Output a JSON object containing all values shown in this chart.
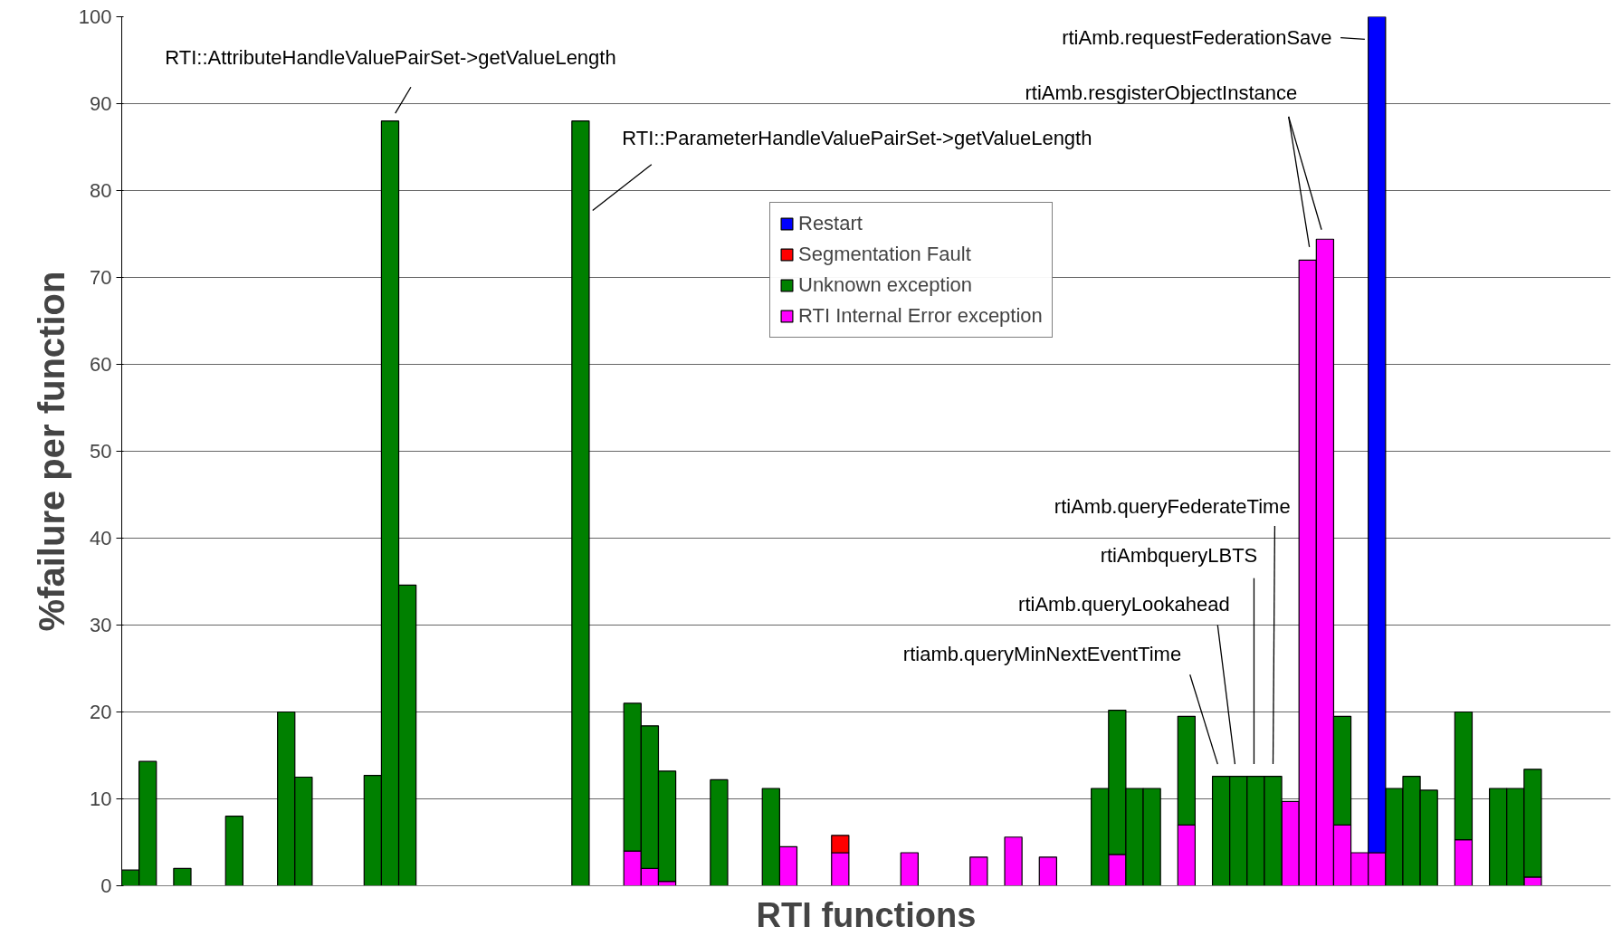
{
  "chart_data": {
    "type": "bar",
    "stacked": true,
    "xlabel": "RTI functions",
    "ylabel": "%failure per function",
    "categories": [
      null,
      null,
      null,
      null,
      null,
      null,
      null,
      null,
      null,
      null,
      null,
      null,
      null,
      null,
      null,
      null,
      null,
      null,
      null,
      null,
      null,
      null,
      null,
      null,
      null,
      null,
      null,
      null,
      null,
      null,
      null,
      null,
      null,
      null,
      null,
      null,
      null,
      null,
      null,
      null,
      null,
      null,
      null,
      null,
      null,
      null,
      null,
      null,
      null,
      null,
      null,
      null,
      null,
      null,
      null,
      null,
      null,
      null,
      null,
      null,
      null,
      null,
      null,
      null,
      null,
      null,
      null,
      null,
      null,
      null,
      null,
      null,
      null,
      null,
      null,
      null,
      null,
      null,
      null,
      null,
      null,
      null,
      null,
      null,
      null,
      null
    ],
    "series": [
      {
        "name": "RTI Internal Error exception",
        "color": "#ff00ff",
        "values": [
          null,
          null,
          null,
          null,
          null,
          null,
          null,
          null,
          null,
          null,
          null,
          null,
          null,
          null,
          null,
          null,
          null,
          null,
          null,
          null,
          null,
          null,
          null,
          null,
          null,
          null,
          null,
          null,
          null,
          4,
          2,
          0.5,
          null,
          null,
          null,
          null,
          null,
          null,
          4.5,
          null,
          null,
          3.8,
          null,
          null,
          null,
          3.8,
          null,
          null,
          null,
          3.3,
          null,
          5.6,
          null,
          3.3,
          null,
          null,
          null,
          3.6,
          null,
          null,
          null,
          7,
          null,
          null,
          null,
          null,
          null,
          9.7,
          72,
          74.4,
          7,
          3.8,
          3.8,
          null,
          null,
          null,
          null,
          5.3,
          null,
          null,
          null,
          1,
          null,
          null,
          null,
          null
        ]
      },
      {
        "name": "Unknown exception",
        "color": "#008000",
        "values": [
          1.8,
          14.3,
          null,
          2,
          null,
          null,
          8,
          null,
          null,
          20,
          12.5,
          null,
          null,
          null,
          12.7,
          88,
          34.6,
          null,
          null,
          null,
          null,
          null,
          null,
          null,
          null,
          null,
          88,
          null,
          null,
          17,
          16.4,
          12.7,
          null,
          null,
          12.2,
          null,
          null,
          11.2,
          null,
          null,
          null,
          null,
          null,
          null,
          null,
          null,
          null,
          null,
          null,
          null,
          null,
          null,
          null,
          null,
          null,
          null,
          11.2,
          16.6,
          11.2,
          11.2,
          null,
          12.5,
          null,
          12.6,
          12.6,
          12.6,
          12.6,
          null,
          null,
          null,
          12.5,
          null,
          null,
          11.2,
          12.6,
          11,
          null,
          14.7,
          null,
          11.2,
          11.2,
          12.4,
          null,
          null,
          null,
          null
        ]
      },
      {
        "name": "Segmentation Fault",
        "color": "#ff0000",
        "values": [
          null,
          null,
          null,
          null,
          null,
          null,
          null,
          null,
          null,
          null,
          null,
          null,
          null,
          null,
          null,
          null,
          null,
          null,
          null,
          null,
          null,
          null,
          null,
          null,
          null,
          null,
          null,
          null,
          null,
          null,
          null,
          null,
          null,
          null,
          null,
          null,
          null,
          null,
          null,
          null,
          null,
          2,
          null,
          null,
          null,
          null,
          null,
          null,
          null,
          null,
          null,
          null,
          null,
          null,
          null,
          null,
          null,
          null,
          null,
          null,
          null,
          null,
          null,
          null,
          null,
          null,
          null,
          null,
          null,
          null,
          null,
          null,
          null,
          null,
          null,
          null,
          null,
          null,
          null,
          null,
          null,
          null,
          null,
          null,
          null,
          null
        ]
      },
      {
        "name": "Restart",
        "color": "#0000ff",
        "values": [
          null,
          null,
          null,
          null,
          null,
          null,
          null,
          null,
          null,
          null,
          null,
          null,
          null,
          null,
          null,
          null,
          null,
          null,
          null,
          null,
          null,
          null,
          null,
          null,
          null,
          null,
          null,
          null,
          null,
          null,
          null,
          null,
          null,
          null,
          null,
          null,
          null,
          null,
          null,
          null,
          null,
          null,
          null,
          null,
          null,
          null,
          null,
          null,
          null,
          null,
          null,
          null,
          null,
          null,
          null,
          null,
          null,
          null,
          null,
          null,
          null,
          null,
          null,
          null,
          null,
          null,
          null,
          null,
          null,
          null,
          null,
          null,
          96.2,
          null,
          null,
          null,
          null,
          null,
          null,
          null,
          null,
          null,
          null,
          null,
          null,
          null
        ]
      }
    ],
    "ylim": [
      0,
      100
    ],
    "yticks": [
      0,
      10,
      20,
      30,
      40,
      50,
      60,
      70,
      80,
      90,
      100
    ],
    "grid": "y",
    "legend": "top",
    "tick_labels": "y",
    "annotations": [
      "RTI::AttributeHandleValuePairSet->getValueLength",
      "RTI::ParameterHandleValuePairSet->getValueLength",
      "rtiAmb.requestFederationSave",
      "rtiAmb.resgisterObjectInstance",
      "rtiAmb.queryFederateTime",
      "rtiAmbqueryLBTS",
      "rtiAmb.queryLookahead",
      "rtiamb.queryMinNextEventTime"
    ]
  }
}
